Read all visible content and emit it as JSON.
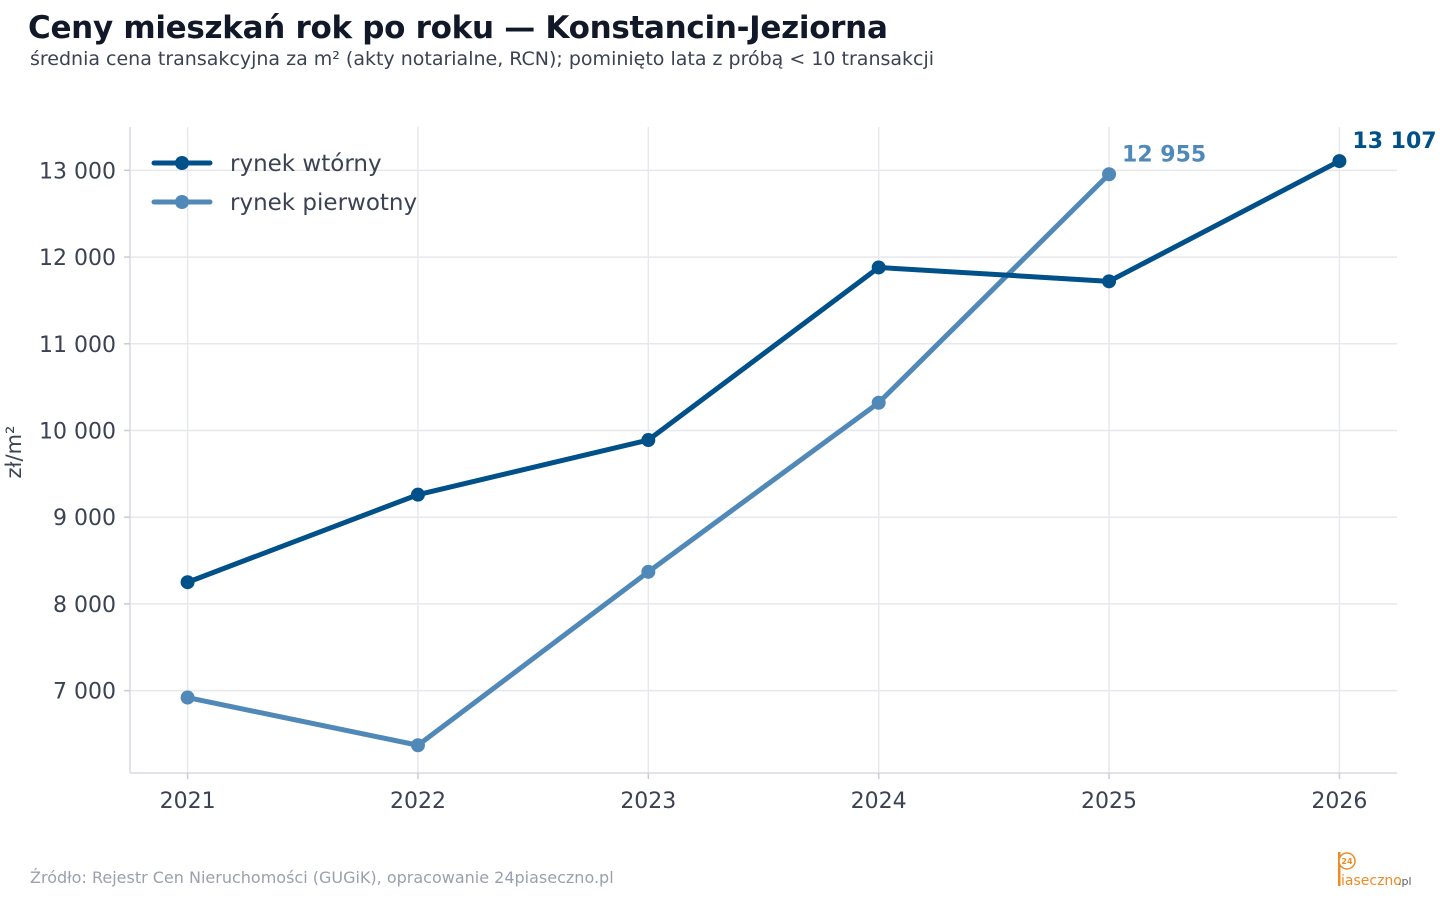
{
  "chart_data": {
    "type": "line",
    "title": "Ceny mieszkań rok po roku — Konstancin-Jeziorna",
    "subtitle": "średnia cena transakcyjna za m² (akty notarialne, RCN); pominięto lata z próbą < 10 transakcji",
    "xlabel": "",
    "ylabel": "zł/m²",
    "x": [
      2021,
      2022,
      2023,
      2024,
      2025,
      2026
    ],
    "x_tick_labels": [
      "2021",
      "2022",
      "2023",
      "2024",
      "2025",
      "2026"
    ],
    "xlim": [
      2020.75,
      2026.25
    ],
    "ylim": [
      6050,
      13500
    ],
    "y_ticks": [
      7000,
      8000,
      9000,
      10000,
      11000,
      12000,
      13000
    ],
    "y_tick_labels": [
      "7 000",
      "8 000",
      "9 000",
      "10 000",
      "11 000",
      "12 000",
      "13 000"
    ],
    "grid": true,
    "legend_position": "top-left",
    "series": [
      {
        "name": "rynek wtórny",
        "color": "#00508a",
        "x": [
          2021,
          2022,
          2023,
          2024,
          2025,
          2026
        ],
        "values": [
          8250,
          9260,
          9890,
          11880,
          11720,
          13107
        ],
        "end_label": "13 107"
      },
      {
        "name": "rynek pierwotny",
        "color": "#5089b8",
        "x": [
          2021,
          2022,
          2023,
          2024,
          2025
        ],
        "values": [
          6920,
          6370,
          8370,
          10320,
          12955
        ],
        "end_label": "12 955"
      }
    ],
    "source_note": "Źródło: Rejestr Cen Nieruchomości (GUGiK), opracowanie 24piaseczno.pl"
  },
  "logo": {
    "badge": "24",
    "brand": "iaseczno",
    "tld": ".pl",
    "accent_color": "#f08a24"
  }
}
